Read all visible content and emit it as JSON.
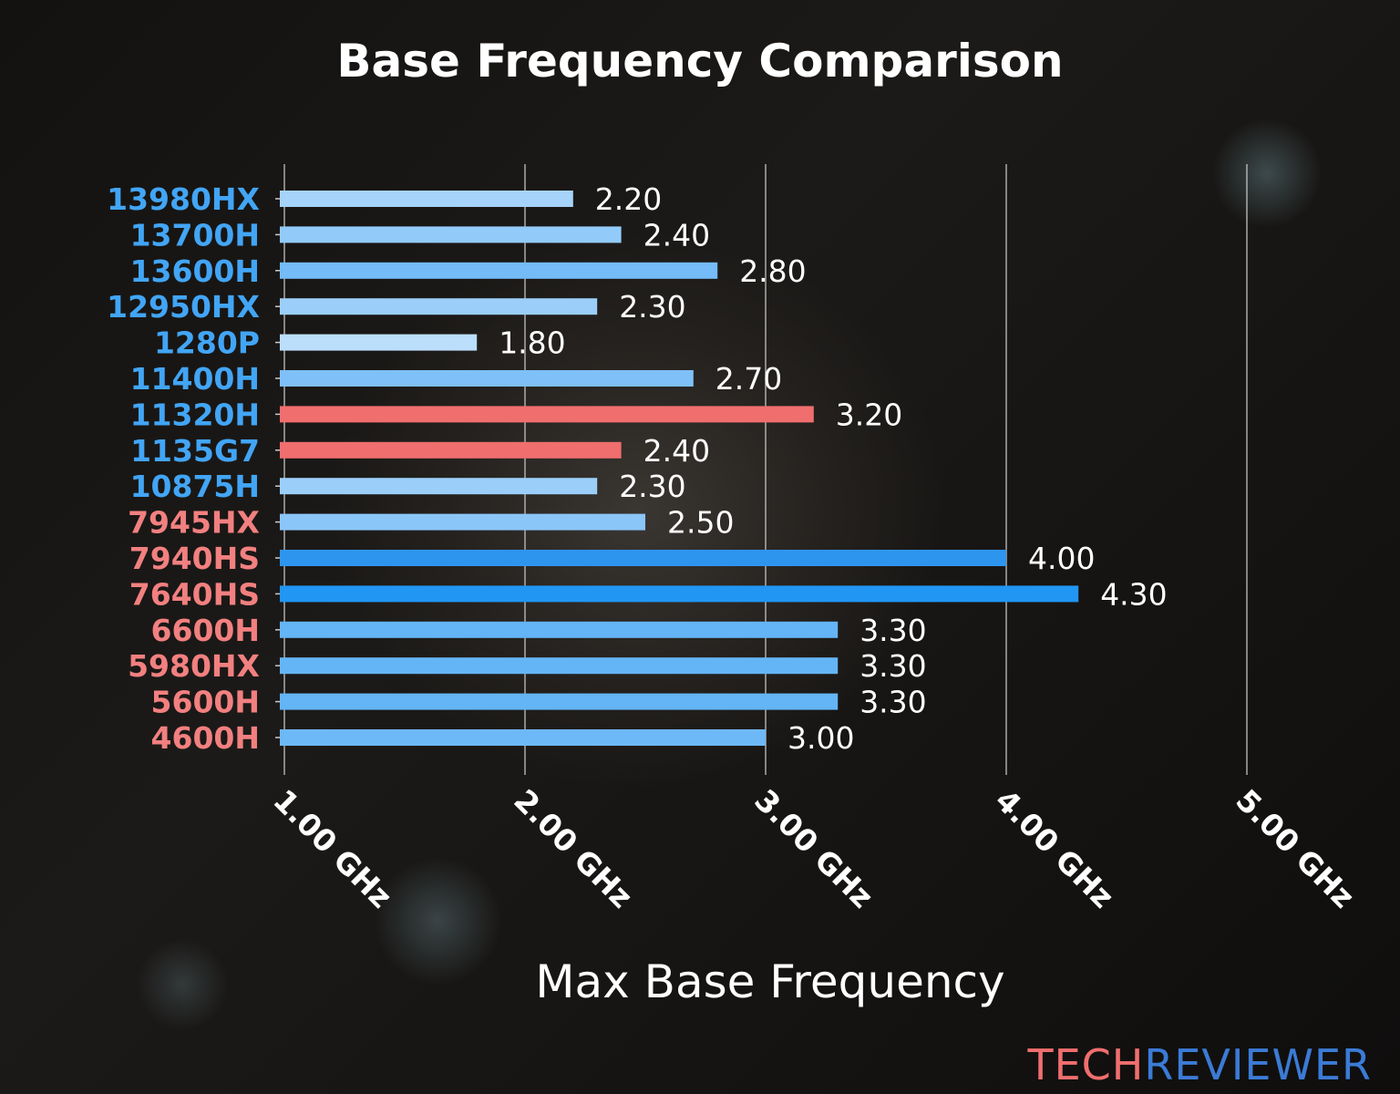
{
  "chart_data": {
    "type": "bar",
    "orientation": "horizontal",
    "title": "Base Frequency Comparison",
    "xlabel": "Max Base Frequency",
    "ylabel": "",
    "xlim": [
      1.0,
      5.2
    ],
    "grid": true,
    "x_ticks": [
      1,
      2,
      3,
      4,
      5
    ],
    "x_tick_labels": [
      "1.00 GHz",
      "2.00 GHz",
      "3.00 GHz",
      "4.00 GHz",
      "5.00 GHz"
    ],
    "categories": [
      "13980HX",
      "13700H",
      "13600H",
      "12950HX",
      "1280P",
      "11400H",
      "11320H",
      "1135G7",
      "10875H",
      "7945HX",
      "7940HS",
      "7640HS",
      "6600H",
      "5980HX",
      "5600H",
      "4600H"
    ],
    "values": [
      2.2,
      2.4,
      2.8,
      2.3,
      1.8,
      2.7,
      3.2,
      2.4,
      2.3,
      2.5,
      4.0,
      4.3,
      3.3,
      3.3,
      3.3,
      3.0
    ],
    "value_labels": [
      "2.20",
      "2.40",
      "2.80",
      "2.30",
      "1.80",
      "2.70",
      "3.20",
      "2.40",
      "2.30",
      "2.50",
      "4.00",
      "4.30",
      "3.30",
      "3.30",
      "3.30",
      "3.00"
    ],
    "category_colors": [
      "#42a5f5",
      "#42a5f5",
      "#42a5f5",
      "#42a5f5",
      "#42a5f5",
      "#42a5f5",
      "#42a5f5",
      "#42a5f5",
      "#42a5f5",
      "#f28080",
      "#f28080",
      "#f28080",
      "#f28080",
      "#f28080",
      "#f28080",
      "#f28080"
    ],
    "bar_colors": [
      "#a6d3fa",
      "#92cbf9",
      "#74bbf7",
      "#9bcff9",
      "#bbdefb",
      "#7fc0f8",
      "#f06e6e",
      "#f06e6e",
      "#9bcff9",
      "#8bc6f8",
      "#2e95ef",
      "#2196f3",
      "#64b5f6",
      "#64b5f6",
      "#64b5f6",
      "#6db8f6"
    ]
  },
  "watermark": {
    "part1": "TECH",
    "part2": "REVIEWER",
    "color1": "#f06e6e",
    "color2": "#3b7bd6"
  }
}
